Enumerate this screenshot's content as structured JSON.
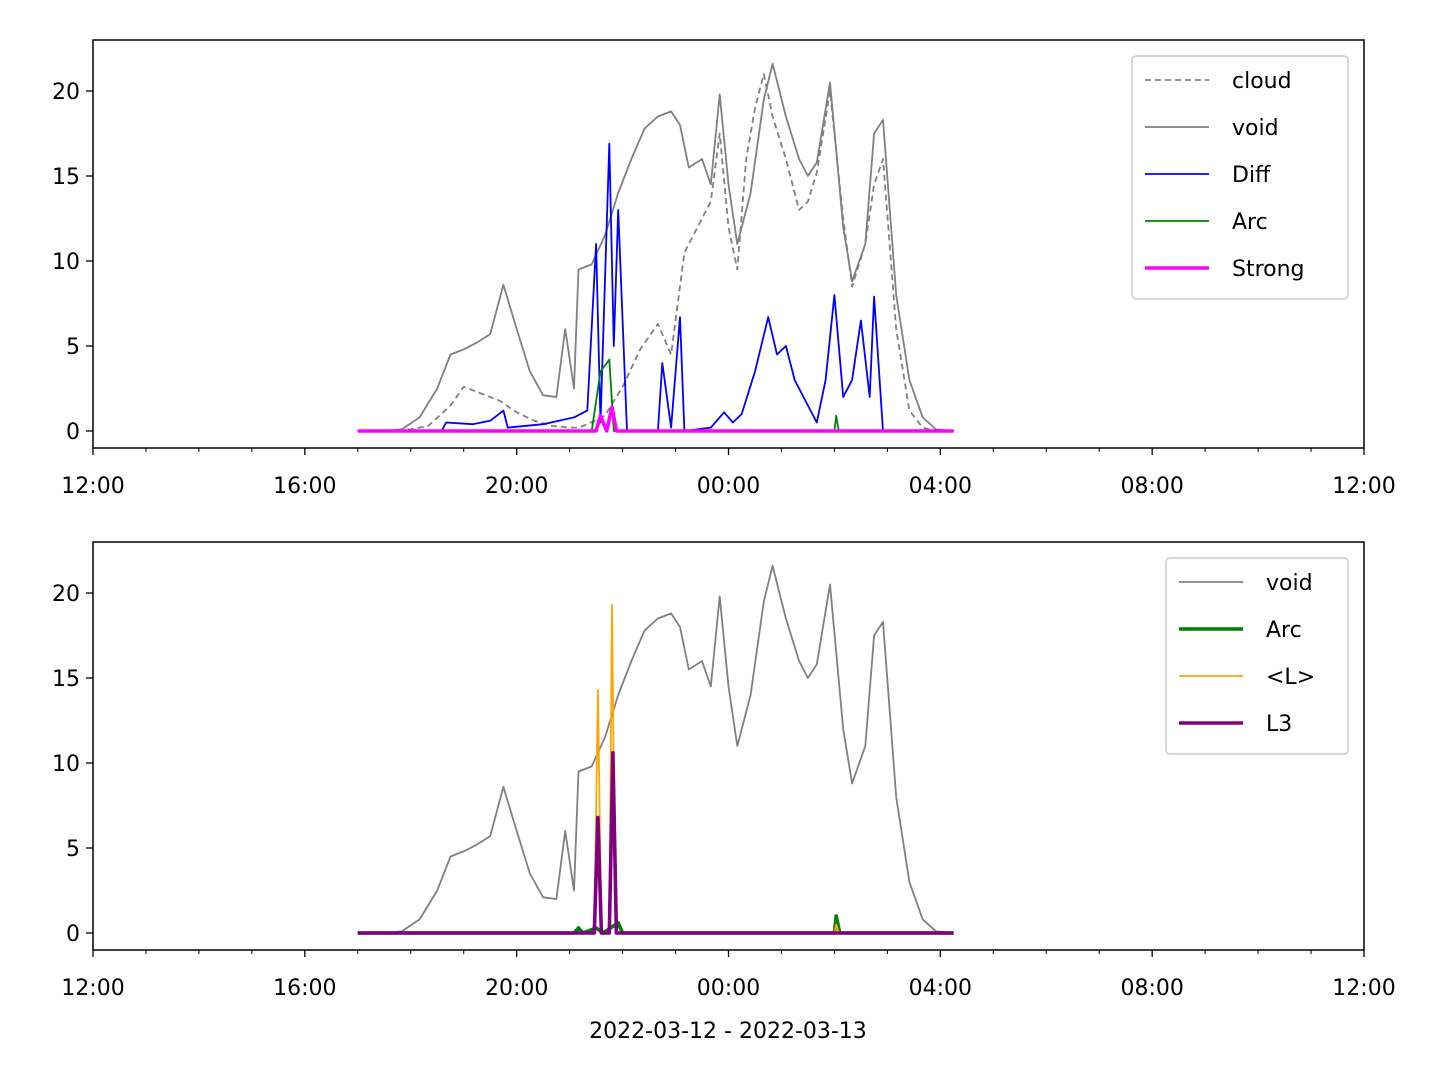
{
  "figure": {
    "xlabel": "2022-03-12 - 2022-03-13"
  },
  "chart_data": [
    {
      "type": "line",
      "xlim": [
        "12:00",
        "12:00 (+1 day)"
      ],
      "ylim": [
        -1,
        23
      ],
      "xticks": [
        "12:00",
        "16:00",
        "20:00",
        "00:00",
        "04:00",
        "08:00",
        "12:00"
      ],
      "yticks": [
        0,
        5,
        10,
        15,
        20
      ],
      "legend": {
        "placement": "upper right"
      },
      "series": [
        {
          "name": "cloud",
          "color": "#808080",
          "style": "dashed",
          "points": [
            [
              "17:00",
              0
            ],
            [
              "17:30",
              0
            ],
            [
              "18:00",
              0.1
            ],
            [
              "18:20",
              0.3
            ],
            [
              "18:45",
              1.5
            ],
            [
              "19:00",
              2.6
            ],
            [
              "19:20",
              2.2
            ],
            [
              "19:40",
              1.8
            ],
            [
              "20:00",
              1.1
            ],
            [
              "20:20",
              0.6
            ],
            [
              "20:40",
              0.3
            ],
            [
              "21:00",
              0.2
            ],
            [
              "21:10",
              0.2
            ],
            [
              "21:20",
              0.4
            ],
            [
              "21:40",
              0.9
            ],
            [
              "22:00",
              2.6
            ],
            [
              "22:20",
              4.8
            ],
            [
              "22:40",
              6.3
            ],
            [
              "22:55",
              4.5
            ],
            [
              "23:10",
              10.5
            ],
            [
              "23:25",
              12.0
            ],
            [
              "23:40",
              13.5
            ],
            [
              "23:50",
              17.5
            ],
            [
              "00:00",
              12.0
            ],
            [
              "00:10",
              9.5
            ],
            [
              "00:20",
              16.0
            ],
            [
              "00:30",
              19.0
            ],
            [
              "00:40",
              21.0
            ],
            [
              "00:50",
              18.5
            ],
            [
              "01:05",
              16.0
            ],
            [
              "01:20",
              13.0
            ],
            [
              "01:30",
              13.5
            ],
            [
              "01:40",
              15.2
            ],
            [
              "01:55",
              20.0
            ],
            [
              "02:10",
              12.5
            ],
            [
              "02:20",
              8.5
            ],
            [
              "02:35",
              11.0
            ],
            [
              "02:45",
              14.5
            ],
            [
              "02:55",
              16.0
            ],
            [
              "03:10",
              6.0
            ],
            [
              "03:25",
              1.2
            ],
            [
              "03:40",
              0.2
            ],
            [
              "03:55",
              0
            ],
            [
              "04:15",
              0
            ]
          ]
        },
        {
          "name": "void",
          "color": "#808080",
          "style": "solid",
          "points": [
            [
              "17:00",
              0
            ],
            [
              "17:30",
              0
            ],
            [
              "17:50",
              0.1
            ],
            [
              "18:10",
              0.8
            ],
            [
              "18:30",
              2.5
            ],
            [
              "18:45",
              4.5
            ],
            [
              "19:00",
              4.8
            ],
            [
              "19:15",
              5.2
            ],
            [
              "19:30",
              5.7
            ],
            [
              "19:45",
              8.6
            ],
            [
              "20:00",
              6.0
            ],
            [
              "20:15",
              3.5
            ],
            [
              "20:30",
              2.1
            ],
            [
              "20:45",
              2.0
            ],
            [
              "20:55",
              6.0
            ],
            [
              "21:05",
              2.5
            ],
            [
              "21:10",
              9.5
            ],
            [
              "21:25",
              9.8
            ],
            [
              "21:40",
              11.5
            ],
            [
              "21:55",
              14.0
            ],
            [
              "22:10",
              16.0
            ],
            [
              "22:25",
              17.8
            ],
            [
              "22:40",
              18.5
            ],
            [
              "22:55",
              18.8
            ],
            [
              "23:05",
              18.0
            ],
            [
              "23:15",
              15.5
            ],
            [
              "23:30",
              16.0
            ],
            [
              "23:40",
              14.5
            ],
            [
              "23:50",
              19.8
            ],
            [
              "00:00",
              14.5
            ],
            [
              "00:10",
              11.0
            ],
            [
              "00:25",
              14.0
            ],
            [
              "00:40",
              19.5
            ],
            [
              "00:50",
              21.6
            ],
            [
              "01:05",
              18.5
            ],
            [
              "01:20",
              16.0
            ],
            [
              "01:30",
              15.0
            ],
            [
              "01:40",
              15.8
            ],
            [
              "01:55",
              20.5
            ],
            [
              "02:10",
              12.0
            ],
            [
              "02:20",
              8.8
            ],
            [
              "02:35",
              11.0
            ],
            [
              "02:45",
              17.5
            ],
            [
              "02:55",
              18.3
            ],
            [
              "03:10",
              8.0
            ],
            [
              "03:25",
              3.0
            ],
            [
              "03:40",
              0.8
            ],
            [
              "03:55",
              0.1
            ],
            [
              "04:15",
              0
            ]
          ]
        },
        {
          "name": "Diff",
          "color": "#0000ff",
          "style": "solid",
          "points": [
            [
              "17:00",
              0
            ],
            [
              "18:35",
              0
            ],
            [
              "18:40",
              0.5
            ],
            [
              "19:10",
              0.4
            ],
            [
              "19:30",
              0.6
            ],
            [
              "19:45",
              1.2
            ],
            [
              "19:50",
              0.2
            ],
            [
              "20:30",
              0.4
            ],
            [
              "21:05",
              0.8
            ],
            [
              "21:20",
              1.2
            ],
            [
              "21:30",
              11.0
            ],
            [
              "21:35",
              0.5
            ],
            [
              "21:45",
              16.9
            ],
            [
              "21:50",
              5.0
            ],
            [
              "21:55",
              13.0
            ],
            [
              "22:05",
              0
            ],
            [
              "22:40",
              0
            ],
            [
              "22:45",
              4.0
            ],
            [
              "22:55",
              0.2
            ],
            [
              "23:05",
              6.7
            ],
            [
              "23:10",
              0
            ],
            [
              "23:40",
              0.2
            ],
            [
              "23:55",
              1.1
            ],
            [
              "00:05",
              0.5
            ],
            [
              "00:15",
              1.0
            ],
            [
              "00:30",
              3.5
            ],
            [
              "00:45",
              6.7
            ],
            [
              "00:55",
              4.5
            ],
            [
              "01:05",
              5.0
            ],
            [
              "01:15",
              3.0
            ],
            [
              "01:30",
              1.5
            ],
            [
              "01:40",
              0.5
            ],
            [
              "01:50",
              3.0
            ],
            [
              "02:00",
              8.0
            ],
            [
              "02:10",
              2.0
            ],
            [
              "02:20",
              3.0
            ],
            [
              "02:30",
              6.5
            ],
            [
              "02:40",
              2.0
            ],
            [
              "02:45",
              7.9
            ],
            [
              "02:55",
              0
            ]
          ]
        },
        {
          "name": "Arc",
          "color": "#008000",
          "style": "solid",
          "points": [
            [
              "17:00",
              0
            ],
            [
              "21:25",
              0
            ],
            [
              "21:35",
              3.5
            ],
            [
              "21:45",
              4.2
            ],
            [
              "21:50",
              0
            ],
            [
              "02:00",
              0
            ],
            [
              "02:02",
              0.9
            ],
            [
              "02:05",
              0
            ],
            [
              "04:15",
              0
            ]
          ]
        },
        {
          "name": "Strong",
          "color": "#ff00ff",
          "style": "solid-thick",
          "points": [
            [
              "17:00",
              0
            ],
            [
              "21:30",
              0
            ],
            [
              "21:35",
              0.9
            ],
            [
              "21:42",
              0
            ],
            [
              "21:48",
              1.4
            ],
            [
              "21:53",
              0
            ],
            [
              "04:15",
              0
            ]
          ]
        }
      ]
    },
    {
      "type": "line",
      "xlim": [
        "12:00",
        "12:00 (+1 day)"
      ],
      "ylim": [
        -1,
        23
      ],
      "xticks": [
        "12:00",
        "16:00",
        "20:00",
        "00:00",
        "04:00",
        "08:00",
        "12:00"
      ],
      "yticks": [
        0,
        5,
        10,
        15,
        20
      ],
      "xlabel": "2022-03-12 - 2022-03-13",
      "legend": {
        "placement": "upper right"
      },
      "series": [
        {
          "name": "void",
          "color": "#808080",
          "style": "solid",
          "points": [
            [
              "17:00",
              0
            ],
            [
              "17:30",
              0
            ],
            [
              "17:50",
              0.1
            ],
            [
              "18:10",
              0.8
            ],
            [
              "18:30",
              2.5
            ],
            [
              "18:45",
              4.5
            ],
            [
              "19:00",
              4.8
            ],
            [
              "19:15",
              5.2
            ],
            [
              "19:30",
              5.7
            ],
            [
              "19:45",
              8.6
            ],
            [
              "20:00",
              6.0
            ],
            [
              "20:15",
              3.5
            ],
            [
              "20:30",
              2.1
            ],
            [
              "20:45",
              2.0
            ],
            [
              "20:55",
              6.0
            ],
            [
              "21:05",
              2.5
            ],
            [
              "21:10",
              9.5
            ],
            [
              "21:25",
              9.8
            ],
            [
              "21:40",
              11.5
            ],
            [
              "21:55",
              14.0
            ],
            [
              "22:10",
              16.0
            ],
            [
              "22:25",
              17.8
            ],
            [
              "22:40",
              18.5
            ],
            [
              "22:55",
              18.8
            ],
            [
              "23:05",
              18.0
            ],
            [
              "23:15",
              15.5
            ],
            [
              "23:30",
              16.0
            ],
            [
              "23:40",
              14.5
            ],
            [
              "23:50",
              19.8
            ],
            [
              "00:00",
              14.5
            ],
            [
              "00:10",
              11.0
            ],
            [
              "00:25",
              14.0
            ],
            [
              "00:40",
              19.5
            ],
            [
              "00:50",
              21.6
            ],
            [
              "01:05",
              18.5
            ],
            [
              "01:20",
              16.0
            ],
            [
              "01:30",
              15.0
            ],
            [
              "01:40",
              15.8
            ],
            [
              "01:55",
              20.5
            ],
            [
              "02:10",
              12.0
            ],
            [
              "02:20",
              8.8
            ],
            [
              "02:35",
              11.0
            ],
            [
              "02:45",
              17.5
            ],
            [
              "02:55",
              18.3
            ],
            [
              "03:10",
              8.0
            ],
            [
              "03:25",
              3.0
            ],
            [
              "03:40",
              0.8
            ],
            [
              "03:55",
              0.1
            ],
            [
              "04:15",
              0
            ]
          ]
        },
        {
          "name": "Arc",
          "color": "#008000",
          "style": "solid-thick",
          "points": [
            [
              "17:00",
              0
            ],
            [
              "21:05",
              0
            ],
            [
              "21:10",
              0.3
            ],
            [
              "21:15",
              0
            ],
            [
              "21:30",
              0.3
            ],
            [
              "21:38",
              0
            ],
            [
              "21:55",
              0.6
            ],
            [
              "22:00",
              0
            ],
            [
              "02:00",
              0
            ],
            [
              "02:02",
              1.0
            ],
            [
              "02:06",
              0
            ],
            [
              "04:15",
              0
            ]
          ]
        },
        {
          "name": "<L>",
          "color": "#ffa500",
          "style": "solid",
          "points": [
            [
              "17:00",
              0
            ],
            [
              "21:28",
              0
            ],
            [
              "21:32",
              14.3
            ],
            [
              "21:36",
              0
            ],
            [
              "21:45",
              0
            ],
            [
              "21:48",
              19.3
            ],
            [
              "21:52",
              0
            ],
            [
              "02:00",
              0
            ],
            [
              "02:02",
              0.5
            ],
            [
              "02:05",
              0
            ],
            [
              "04:15",
              0
            ]
          ]
        },
        {
          "name": "L3",
          "color": "#800080",
          "style": "solid-thick",
          "points": [
            [
              "17:00",
              0
            ],
            [
              "21:28",
              0
            ],
            [
              "21:32",
              6.8
            ],
            [
              "21:36",
              0
            ],
            [
              "21:45",
              0
            ],
            [
              "21:49",
              10.6
            ],
            [
              "21:53",
              0
            ],
            [
              "04:15",
              0
            ]
          ]
        }
      ]
    }
  ]
}
